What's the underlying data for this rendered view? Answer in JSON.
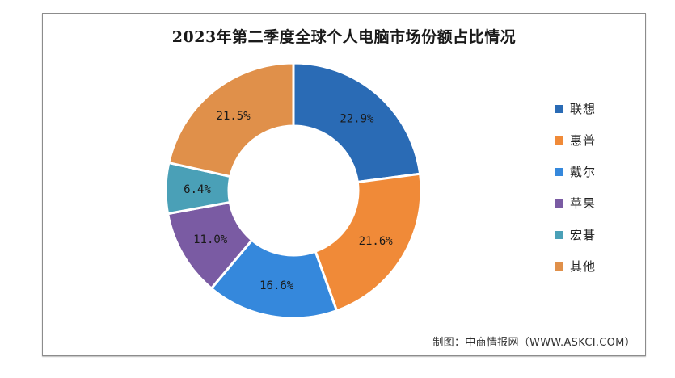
{
  "chart_data": {
    "type": "pie",
    "variant": "donut",
    "title": "2023年第二季度全球个人电脑市场份额占比情况",
    "categories": [
      "联想",
      "惠普",
      "戴尔",
      "苹果",
      "宏碁",
      "其他"
    ],
    "values": [
      22.9,
      21.6,
      16.6,
      11.0,
      6.4,
      21.5
    ],
    "labels": [
      "22.9%",
      "21.6%",
      "16.6%",
      "11.0%",
      "6.4%",
      "21.5%"
    ],
    "colors": [
      "#2a6bb5",
      "#f08a38",
      "#3588dc",
      "#7a5ba3",
      "#4aa0b7",
      "#e0904a"
    ],
    "unit": "%",
    "start_angle": "12 o'clock",
    "direction": "clockwise",
    "legend_position": "right"
  },
  "title": "2023年第二季度全球个人电脑市场份额占比情况",
  "legend": [
    {
      "label": "联想",
      "color": "#2a6bb5"
    },
    {
      "label": "惠普",
      "color": "#f08a38"
    },
    {
      "label": "戴尔",
      "color": "#3588dc"
    },
    {
      "label": "苹果",
      "color": "#7a5ba3"
    },
    {
      "label": "宏碁",
      "color": "#4aa0b7"
    },
    {
      "label": "其他",
      "color": "#e0904a"
    }
  ],
  "source": "制图：中商情报网（WWW.ASKCI.COM）"
}
